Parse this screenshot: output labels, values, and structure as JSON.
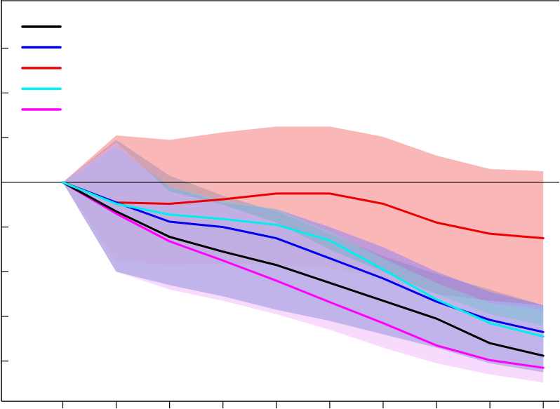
{
  "chart_data": {
    "type": "line",
    "title": "",
    "xlabel": "",
    "ylabel": "",
    "x": [
      0,
      1,
      2,
      3,
      4,
      5,
      6,
      7,
      8,
      9
    ],
    "xlim": [
      -1.15,
      9.3
    ],
    "ylim": [
      -4.9,
      4.05
    ],
    "grid": false,
    "legend": {
      "placement": "top-left",
      "show_text": false
    },
    "reference_line_y": 0,
    "series": [
      {
        "color": "#000000",
        "values": [
          0,
          -0.65,
          -1.22,
          -1.55,
          -1.85,
          -2.25,
          -2.65,
          -3.05,
          -3.6,
          -3.88
        ],
        "band_lower": [
          0,
          -2.0,
          -2.3,
          -2.55,
          -2.85,
          -3.1,
          -3.4,
          -3.7,
          -4.05,
          -4.25
        ],
        "band_upper": [
          0,
          0.95,
          0.15,
          -0.3,
          -0.65,
          -1.15,
          -1.65,
          -2.05,
          -2.4,
          -2.75
        ],
        "band_color": "#a08aa8"
      },
      {
        "color": "#0000ee",
        "values": [
          0,
          -0.45,
          -0.88,
          -1.0,
          -1.25,
          -1.7,
          -2.15,
          -2.67,
          -3.08,
          -3.35
        ],
        "band_lower": [
          0,
          -2.0,
          -2.3,
          -2.55,
          -2.85,
          -3.1,
          -3.4,
          -3.7,
          -4.05,
          -4.25
        ],
        "band_upper": [
          0,
          0.8,
          -0.1,
          -0.45,
          -0.6,
          -1.0,
          -1.45,
          -2.0,
          -2.45,
          -2.75
        ],
        "band_color": "#7a7aff"
      },
      {
        "color": "#ee0000",
        "values": [
          0,
          -0.45,
          -0.48,
          -0.38,
          -0.25,
          -0.25,
          -0.48,
          -0.9,
          -1.15,
          -1.25
        ],
        "band_lower": [
          0,
          -1.75,
          -1.85,
          -1.82,
          -1.85,
          -1.92,
          -2.15,
          -2.5,
          -2.65,
          -2.75
        ],
        "band_upper": [
          0,
          1.05,
          0.95,
          1.12,
          1.25,
          1.25,
          1.02,
          0.6,
          0.3,
          0.25
        ],
        "band_color": "#f89898"
      },
      {
        "color": "#00eeee",
        "values": [
          0,
          -0.48,
          -0.72,
          -0.82,
          -0.95,
          -1.3,
          -1.95,
          -2.62,
          -3.15,
          -3.45
        ],
        "band_lower": [
          0,
          -2.0,
          -2.3,
          -2.55,
          -2.85,
          -3.1,
          -3.4,
          -3.7,
          -4.05,
          -4.25
        ],
        "band_upper": [
          0,
          0.8,
          -0.1,
          -0.4,
          -0.6,
          -1.1,
          -1.7,
          -2.25,
          -2.7,
          -2.85
        ],
        "band_color": "#8ad0d0"
      },
      {
        "color": "#ff00ff",
        "values": [
          0,
          -0.7,
          -1.32,
          -1.75,
          -2.2,
          -2.68,
          -3.15,
          -3.65,
          -3.98,
          -4.15
        ],
        "band_lower": [
          0,
          -2.0,
          -2.4,
          -2.65,
          -2.95,
          -3.3,
          -3.7,
          -4.05,
          -4.3,
          -4.48
        ],
        "band_upper": [
          0,
          0.9,
          -0.2,
          -0.5,
          -0.9,
          -1.5,
          -2.0,
          -2.5,
          -2.95,
          -3.2
        ],
        "band_color": "#f0b0f8"
      }
    ]
  }
}
